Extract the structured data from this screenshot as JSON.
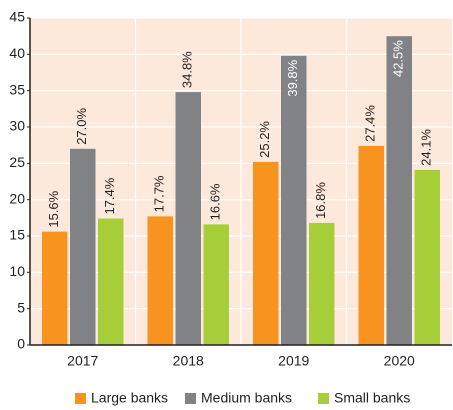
{
  "chart_data": {
    "type": "bar",
    "categories": [
      "2017",
      "2018",
      "2019",
      "2020"
    ],
    "series": [
      {
        "name": "Large banks",
        "color": "#f7931e",
        "values": [
          15.6,
          17.7,
          25.2,
          27.4
        ],
        "value_labels": [
          "15.6%",
          "17.7%",
          "25.2%",
          "27.4%"
        ]
      },
      {
        "name": "Medium banks",
        "color": "#808285",
        "values": [
          27.0,
          34.8,
          39.8,
          42.5
        ],
        "value_labels": [
          "27.0%",
          "34.8%",
          "39.8%",
          "42.5%"
        ]
      },
      {
        "name": "Small banks",
        "color": "#a6ce39",
        "values": [
          17.4,
          16.6,
          16.8,
          24.1
        ],
        "value_labels": [
          "17.4%",
          "16.6%",
          "16.8%",
          "24.1%"
        ]
      }
    ],
    "ylim": [
      0,
      45
    ],
    "yticks": [
      0,
      5,
      10,
      15,
      20,
      25,
      30,
      35,
      40,
      45
    ],
    "grid": true,
    "legend": "bottom"
  }
}
